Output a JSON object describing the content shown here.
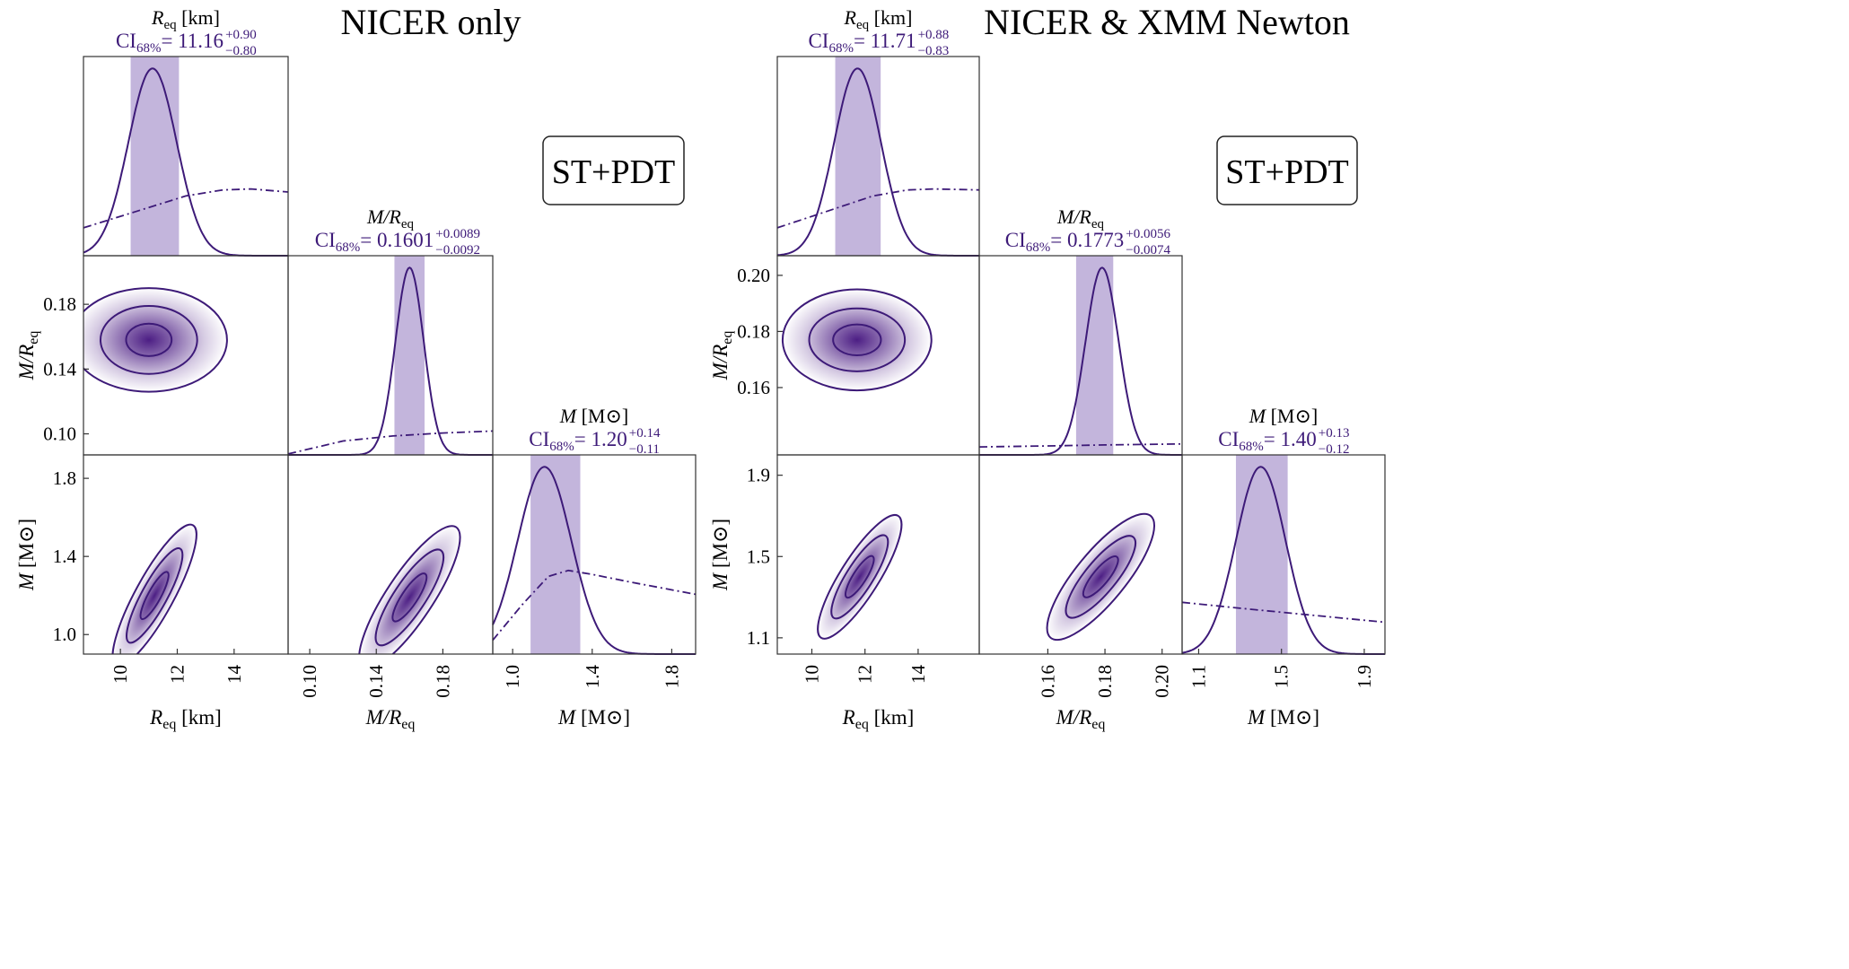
{
  "colors": {
    "line": "#3d1a78",
    "band": "#b9a8d6",
    "fill": "#43127e",
    "frame": "#333333",
    "title": "#000000",
    "label": "#3d1a78"
  },
  "chart_data": [
    {
      "type": "corner",
      "title": "NICER only",
      "badge": "ST+PDT",
      "params": [
        {
          "id": "req",
          "label_sym": "R",
          "label_sub": "eq",
          "label_unit": " [km]",
          "range": [
            8.7,
            15.9
          ],
          "ticks": [
            10,
            12,
            14
          ],
          "tick_labels": [
            "10",
            "12",
            "14"
          ],
          "ci_prefix": "CI",
          "ci_sub": "68%",
          "ci_median": "= 11.16",
          "ci_plus": "+0.90",
          "ci_minus": "−0.80",
          "median": 11.16,
          "lo": 10.36,
          "hi": 12.06,
          "peak": 11.13,
          "sigma": 0.85,
          "prior": [
            [
              8.7,
              0.14
            ],
            [
              10.5,
              0.22
            ],
            [
              12.3,
              0.3
            ],
            [
              13.6,
              0.33
            ],
            [
              14.6,
              0.335
            ],
            [
              15.9,
              0.32
            ]
          ]
        },
        {
          "id": "compactness",
          "label_sym": "M/R",
          "label_sub": "eq",
          "label_unit": "",
          "range": [
            0.087,
            0.21
          ],
          "ticks": [
            0.1,
            0.14,
            0.18
          ],
          "tick_labels": [
            "0.10",
            "0.14",
            "0.18"
          ],
          "ci_prefix": "CI",
          "ci_sub": "68%",
          "ci_median": "= 0.1601",
          "ci_plus": "+0.0089",
          "ci_minus": "−0.0092",
          "median": 0.1601,
          "lo": 0.1509,
          "hi": 0.169,
          "peak": 0.16,
          "sigma": 0.0085,
          "prior": [
            [
              0.087,
              0.005
            ],
            [
              0.12,
              0.07
            ],
            [
              0.15,
              0.095
            ],
            [
              0.18,
              0.11
            ],
            [
              0.21,
              0.12
            ]
          ]
        },
        {
          "id": "mass",
          "label_sym": "M",
          "label_sub": "",
          "label_unit": " [M⊙]",
          "range": [
            0.9,
            1.92
          ],
          "ticks": [
            1.0,
            1.4,
            1.8
          ],
          "tick_labels": [
            "1.0",
            "1.4",
            "1.8"
          ],
          "ci_prefix": "CI",
          "ci_sub": "68%",
          "ci_median": "= 1.20",
          "ci_plus": "+0.14",
          "ci_minus": "−0.11",
          "median": 1.2,
          "lo": 1.09,
          "hi": 1.34,
          "peak": 1.16,
          "sigma": 0.135,
          "prior": [
            [
              0.9,
              0.07
            ],
            [
              1.05,
              0.25
            ],
            [
              1.18,
              0.39
            ],
            [
              1.28,
              0.42
            ],
            [
              1.4,
              0.4
            ],
            [
              1.6,
              0.36
            ],
            [
              1.92,
              0.3
            ]
          ]
        }
      ],
      "joint": [
        {
          "x": "req",
          "y": "compactness",
          "cx": 11.0,
          "cy": 0.158,
          "levels": [
            [
              0.8,
              0.01
            ],
            [
              1.7,
              0.021
            ],
            [
              2.75,
              0.032
            ]
          ]
        },
        {
          "x": "req",
          "y": "mass",
          "cx": 11.2,
          "cy": 1.2,
          "levels": [
            [
              0.45,
              0.12
            ],
            [
              0.9,
              0.24
            ],
            [
              1.35,
              0.36
            ]
          ],
          "tilt": true
        },
        {
          "x": "compactness",
          "y": "mass",
          "cx": 0.16,
          "cy": 1.19,
          "levels": [
            [
              0.0095,
              0.12
            ],
            [
              0.019,
              0.24
            ],
            [
              0.028,
              0.36
            ]
          ],
          "tilt": true
        }
      ]
    },
    {
      "type": "corner",
      "title": "NICER & XMM Newton",
      "badge": "ST+PDT",
      "params": [
        {
          "id": "req",
          "label_sym": "R",
          "label_sub": "eq",
          "label_unit": " [km]",
          "range": [
            8.7,
            16.3
          ],
          "ticks": [
            10,
            12,
            14
          ],
          "tick_labels": [
            "10",
            "12",
            "14"
          ],
          "ci_prefix": "CI",
          "ci_sub": "68%",
          "ci_median": "= 11.71",
          "ci_plus": "+0.88",
          "ci_minus": "−0.83",
          "median": 11.71,
          "lo": 10.88,
          "hi": 12.59,
          "peak": 11.72,
          "sigma": 0.88,
          "prior": [
            [
              8.7,
              0.14
            ],
            [
              10.5,
              0.22
            ],
            [
              12.3,
              0.3
            ],
            [
              13.6,
              0.33
            ],
            [
              14.6,
              0.335
            ],
            [
              16.3,
              0.33
            ]
          ]
        },
        {
          "id": "compactness",
          "label_sym": "M/R",
          "label_sub": "eq",
          "label_unit": "",
          "range": [
            0.136,
            0.207
          ],
          "ticks": [
            0.16,
            0.18,
            0.2
          ],
          "tick_labels": [
            "0.16",
            "0.18",
            "0.20"
          ],
          "ci_prefix": "CI",
          "ci_sub": "68%",
          "ci_median": "= 0.1773",
          "ci_plus": "+0.0056",
          "ci_minus": "−0.0074",
          "median": 0.1773,
          "lo": 0.1699,
          "hi": 0.1829,
          "peak": 0.179,
          "sigma": 0.0058,
          "prior": [
            [
              0.136,
              0.04
            ],
            [
              0.16,
              0.045
            ],
            [
              0.18,
              0.05
            ],
            [
              0.207,
              0.055
            ]
          ]
        },
        {
          "id": "mass",
          "label_sym": "M",
          "label_sub": "",
          "label_unit": " [M⊙]",
          "range": [
            1.02,
            2.0
          ],
          "ticks": [
            1.1,
            1.5,
            1.9
          ],
          "tick_labels": [
            "1.1",
            "1.5",
            "1.9"
          ],
          "ci_prefix": "CI",
          "ci_sub": "68%",
          "ci_median": "= 1.40",
          "ci_plus": "+0.13",
          "ci_minus": "−0.12",
          "median": 1.4,
          "lo": 1.28,
          "hi": 1.53,
          "peak": 1.4,
          "sigma": 0.12,
          "prior": [
            [
              1.02,
              0.26
            ],
            [
              1.3,
              0.23
            ],
            [
              1.6,
              0.2
            ],
            [
              2.0,
              0.16
            ]
          ]
        }
      ],
      "joint": [
        {
          "x": "req",
          "y": "compactness",
          "cx": 11.7,
          "cy": 0.177,
          "levels": [
            [
              0.9,
              0.0055
            ],
            [
              1.8,
              0.0112
            ],
            [
              2.8,
              0.018
            ]
          ]
        },
        {
          "x": "req",
          "y": "mass",
          "cx": 11.8,
          "cy": 1.4,
          "levels": [
            [
              0.5,
              0.1
            ],
            [
              1.0,
              0.2
            ],
            [
              1.45,
              0.3
            ]
          ],
          "tilt": true
        },
        {
          "x": "compactness",
          "y": "mass",
          "cx": 0.1785,
          "cy": 1.4,
          "levels": [
            [
              0.0055,
              0.1
            ],
            [
              0.011,
              0.2
            ],
            [
              0.0175,
              0.3
            ]
          ],
          "tilt": true
        }
      ]
    }
  ]
}
